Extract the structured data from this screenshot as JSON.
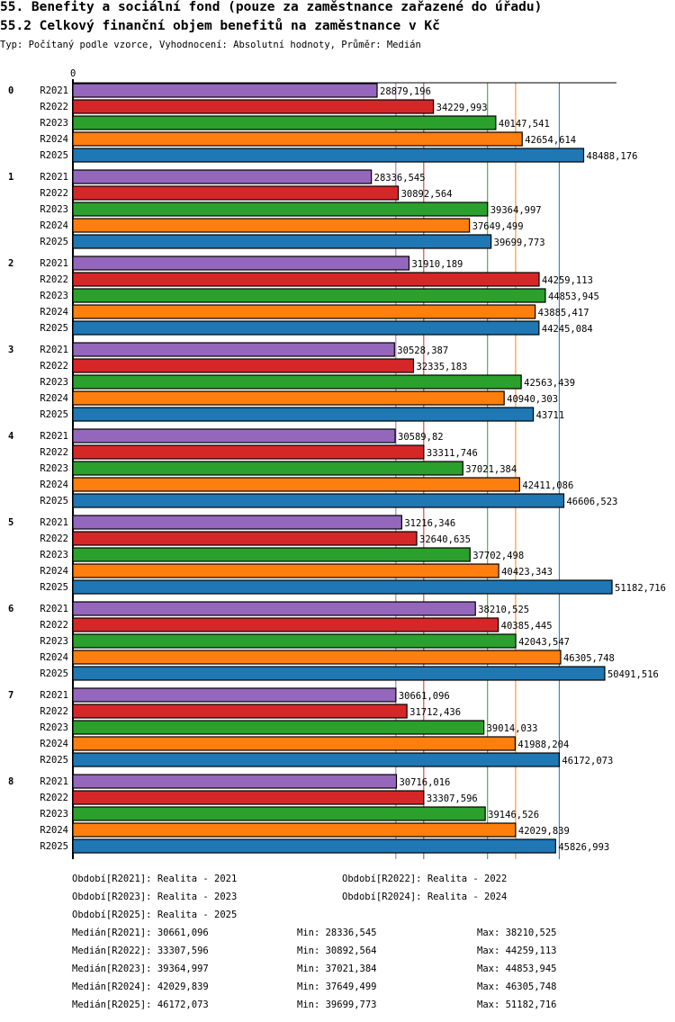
{
  "title": "55. Benefity a sociální fond (pouze za zaměstnance zařazené do úřadu)",
  "subtitle": "55.2 Celkový finanční objem benefitů na zaměstnance v Kč",
  "info": "Typ: Počítaný podle vzorce, Vyhodnocení: Absolutní hodnoty, Průměr: Medián",
  "chart_data": {
    "type": "bar",
    "orientation": "horizontal",
    "x_axis_start_label": "0",
    "xlim": [
      0,
      51500
    ],
    "categories": [
      "0",
      "1",
      "2",
      "3",
      "4",
      "5",
      "6",
      "7",
      "8"
    ],
    "series": [
      {
        "name": "R2021",
        "color": "#9467bd",
        "median": 30661.096,
        "values": [
          "28879,196",
          "28336,545",
          "31910,189",
          "30528,387",
          "30589,82",
          "31216,346",
          "38210,525",
          "30661,096",
          "30716,016"
        ]
      },
      {
        "name": "R2022",
        "color": "#d62728",
        "median": 33307.596,
        "values": [
          "34229,993",
          "30892,564",
          "44259,113",
          "32335,183",
          "33311,746",
          "32640,635",
          "40385,445",
          "31712,436",
          "33307,596"
        ]
      },
      {
        "name": "R2023",
        "color": "#2ca02c",
        "median": 39364.997,
        "values": [
          "40147,541",
          "39364,997",
          "44853,945",
          "42563,439",
          "37021,384",
          "37702,498",
          "42043,547",
          "39014,033",
          "39146,526"
        ]
      },
      {
        "name": "R2024",
        "color": "#ff7f0e",
        "median": 42029.839,
        "values": [
          "42654,614",
          "37649,499",
          "43885,417",
          "40940,303",
          "42411,086",
          "40423,343",
          "46305,748",
          "41988,204",
          "42029,839"
        ]
      },
      {
        "name": "R2025",
        "color": "#1f77b4",
        "median": 46172.073,
        "values": [
          "48488,176",
          "39699,773",
          "44245,084",
          "43711",
          "46606,523",
          "51182,716",
          "50491,516",
          "46172,073",
          "45826,993"
        ]
      }
    ]
  },
  "legend": {
    "periods": [
      "Období[R2021]: Realita - 2021",
      "Období[R2022]: Realita - 2022",
      "Období[R2023]: Realita - 2023",
      "Období[R2024]: Realita - 2024",
      "Období[R2025]: Realita - 2025"
    ],
    "stats": [
      [
        "Medián[R2021]: 30661,096",
        "Min: 28336,545",
        "Max: 38210,525"
      ],
      [
        "Medián[R2022]: 33307,596",
        "Min: 30892,564",
        "Max: 44259,113"
      ],
      [
        "Medián[R2023]: 39364,997",
        "Min: 37021,384",
        "Max: 44853,945"
      ],
      [
        "Medián[R2024]: 42029,839",
        "Min: 37649,499",
        "Max: 46305,748"
      ],
      [
        "Medián[R2025]: 46172,073",
        "Min: 39699,773",
        "Max: 51182,716"
      ]
    ]
  }
}
